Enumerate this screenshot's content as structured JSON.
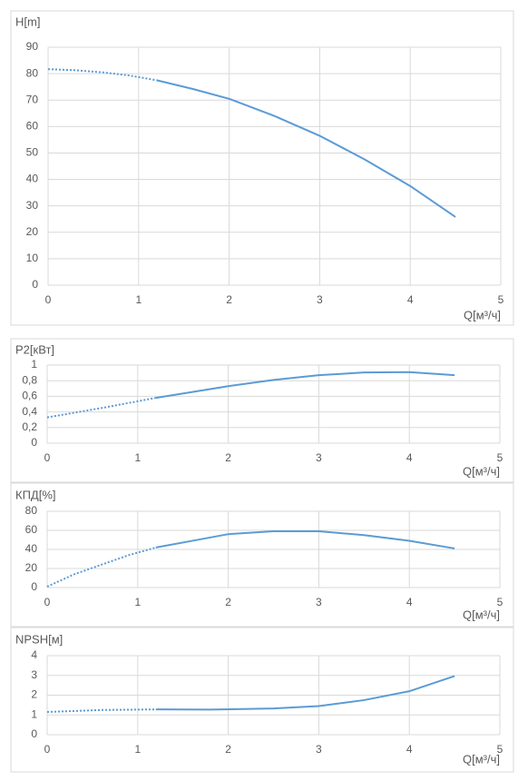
{
  "chart_data": [
    {
      "type": "line",
      "y_label": "H[m]",
      "x_label": "Q[м³/ч]",
      "xlim": [
        0,
        5
      ],
      "xticks": [
        0,
        1,
        2,
        3,
        4,
        5
      ],
      "ylim": [
        0,
        90
      ],
      "yticks": [
        0,
        10,
        20,
        30,
        40,
        50,
        60,
        70,
        80,
        90
      ],
      "grid": true,
      "series": [
        {
          "color": "#5b9bd5",
          "style": "dotted",
          "x": [
            0,
            0.3,
            0.6,
            0.9,
            1.2
          ],
          "values": [
            81.7,
            81.3,
            80.5,
            79.3,
            77.5
          ]
        },
        {
          "color": "#5b9bd5",
          "style": "solid",
          "x": [
            1.2,
            1.6,
            2.0,
            2.5,
            3.0,
            3.5,
            4.0,
            4.5
          ],
          "values": [
            77.5,
            74.2,
            70.5,
            64,
            56.5,
            47.5,
            37.5,
            25.8
          ]
        }
      ]
    },
    {
      "type": "line",
      "y_label": "P2[кВт]",
      "x_label": "Q[м³/ч]",
      "xlim": [
        0,
        5
      ],
      "xticks": [
        0,
        1,
        2,
        3,
        4,
        5
      ],
      "ylim": [
        0,
        1
      ],
      "yticks": [
        0,
        {
          "value": 0.2,
          "label": "0,2"
        },
        {
          "value": 0.4,
          "label": "0,4"
        },
        {
          "value": 0.6,
          "label": "0,6"
        },
        {
          "value": 0.8,
          "label": "0,8"
        },
        1
      ],
      "grid": true,
      "series": [
        {
          "color": "#5b9bd5",
          "style": "dotted",
          "x": [
            0,
            0.6,
            1.2
          ],
          "values": [
            0.33,
            0.45,
            0.58
          ]
        },
        {
          "color": "#5b9bd5",
          "style": "solid",
          "x": [
            1.2,
            2.0,
            2.5,
            3.0,
            3.5,
            4.0,
            4.5
          ],
          "values": [
            0.58,
            0.73,
            0.81,
            0.87,
            0.905,
            0.91,
            0.87
          ]
        }
      ]
    },
    {
      "type": "line",
      "y_label": "КПД[%]",
      "x_label": "Q[м³/ч]",
      "xlim": [
        0,
        5
      ],
      "xticks": [
        0,
        1,
        2,
        3,
        4,
        5
      ],
      "ylim": [
        0,
        80
      ],
      "yticks": [
        0,
        20,
        40,
        60,
        80
      ],
      "grid": true,
      "series": [
        {
          "color": "#5b9bd5",
          "style": "dotted",
          "x": [
            0,
            0.3,
            0.6,
            0.9,
            1.2
          ],
          "values": [
            1,
            14,
            24,
            34,
            42
          ]
        },
        {
          "color": "#5b9bd5",
          "style": "solid",
          "x": [
            1.2,
            1.6,
            2.0,
            2.5,
            3.0,
            3.5,
            4.0,
            4.5
          ],
          "values": [
            42,
            49,
            56,
            59,
            59,
            55,
            49,
            41
          ]
        }
      ]
    },
    {
      "type": "line",
      "y_label": "NPSH[м]",
      "x_label": "Q[м³/ч]",
      "xlim": [
        0,
        5
      ],
      "xticks": [
        0,
        1,
        2,
        3,
        4,
        5
      ],
      "ylim": [
        0,
        4
      ],
      "yticks": [
        0,
        1,
        2,
        3,
        4
      ],
      "grid": true,
      "series": [
        {
          "color": "#5b9bd5",
          "style": "dotted",
          "x": [
            0,
            0.6,
            1.2
          ],
          "values": [
            1.15,
            1.25,
            1.28
          ]
        },
        {
          "color": "#5b9bd5",
          "style": "solid",
          "x": [
            1.2,
            1.8,
            2.5,
            3.0,
            3.5,
            4.0,
            4.5
          ],
          "values": [
            1.28,
            1.27,
            1.33,
            1.45,
            1.75,
            2.2,
            2.97
          ]
        }
      ]
    }
  ]
}
